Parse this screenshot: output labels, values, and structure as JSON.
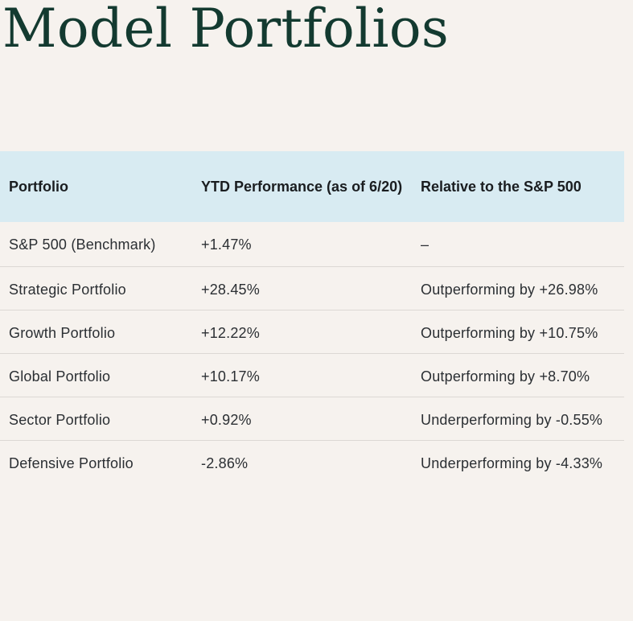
{
  "page": {
    "title": "Model Portfolios"
  },
  "table": {
    "headers": [
      "Portfolio",
      "YTD Performance (as of 6/20)",
      "Relative to the S&P 500"
    ],
    "rows": [
      {
        "portfolio": "S&P 500 (Benchmark)",
        "ytd": "+1.47%",
        "relative": "–"
      },
      {
        "portfolio": "Strategic Portfolio",
        "ytd": "+28.45%",
        "relative": "Outperforming by +26.98%"
      },
      {
        "portfolio": "Growth Portfolio",
        "ytd": "+12.22%",
        "relative": "Outperforming by +10.75%"
      },
      {
        "portfolio": "Global Portfolio",
        "ytd": "+10.17%",
        "relative": "Outperforming by +8.70%"
      },
      {
        "portfolio": "Sector Portfolio",
        "ytd": "+0.92%",
        "relative": "Underperforming by -0.55%"
      },
      {
        "portfolio": "Defensive Portfolio",
        "ytd": "-2.86%",
        "relative": "Underperforming by -4.33%"
      }
    ]
  }
}
